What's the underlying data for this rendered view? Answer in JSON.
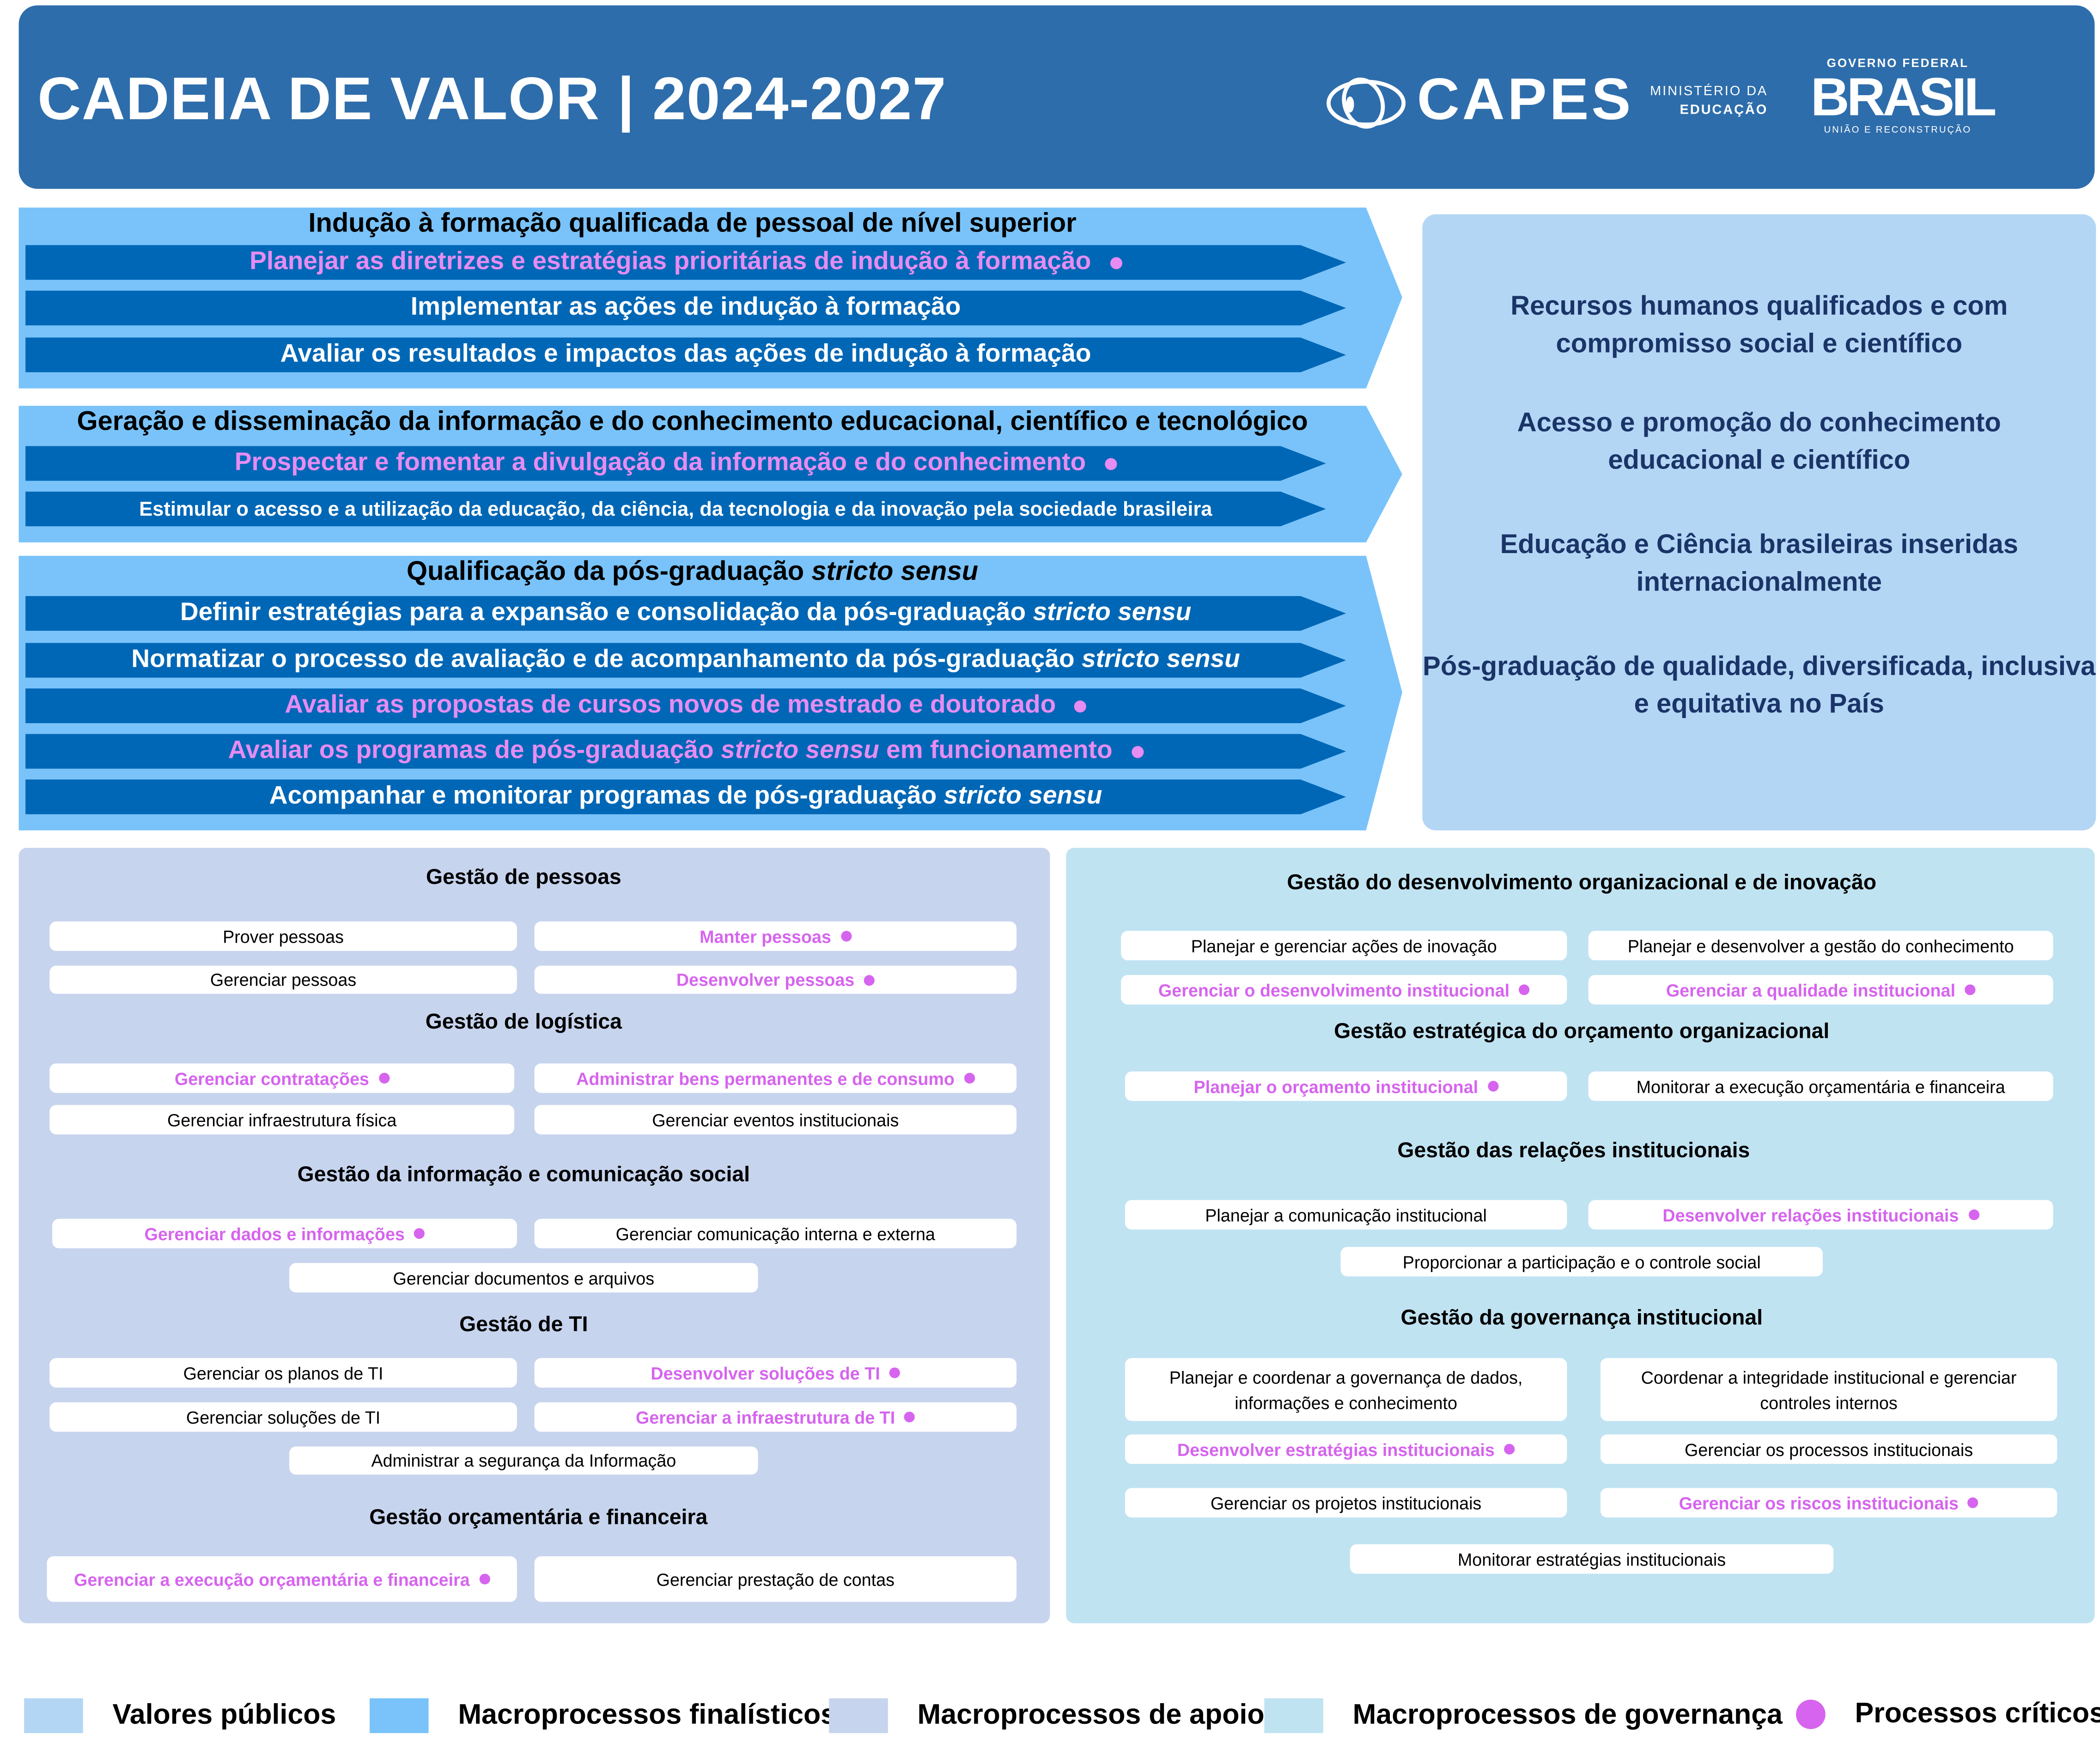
{
  "header": {
    "title": "CADEIA DE VALOR | 2024-2027",
    "logos": {
      "capes": "CAPES",
      "ministerio_line1": "MINISTÉRIO DA",
      "ministerio_line2": "EDUCAÇÃO",
      "gov_top": "GOVERNO FEDERAL",
      "gov_main": "BRASIL",
      "gov_bottom": "UNIÃO E RECONSTRUÇÃO"
    },
    "color": "#2E6DAB"
  },
  "finalisticos": [
    {
      "title": {
        "pre": "Indução à formação qualificada de pessoal de nível superior",
        "em": "",
        "post": ""
      },
      "items": [
        {
          "pre": "Planejar as diretrizes e estratégias prioritárias de indução à formação",
          "em": "",
          "post": "",
          "critical": true
        },
        {
          "pre": "Implementar as ações de indução à formação",
          "em": "",
          "post": "",
          "critical": false
        },
        {
          "pre": "Avaliar os resultados e impactos das ações de indução à formação",
          "em": "",
          "post": "",
          "critical": false
        }
      ]
    },
    {
      "title": {
        "pre": "Geração e disseminação da informação e do conhecimento educacional, científico e tecnológico",
        "em": "",
        "post": ""
      },
      "items": [
        {
          "pre": "Prospectar e fomentar a divulgação da informação e do conhecimento",
          "em": "",
          "post": "",
          "critical": true
        },
        {
          "pre": "Estimular o acesso e a utilização da educação, da ciência, da tecnologia e da inovação pela sociedade brasileira",
          "em": "",
          "post": "",
          "critical": false
        }
      ]
    },
    {
      "title": {
        "pre": "Qualificação da pós-graduação ",
        "em": "stricto sensu",
        "post": ""
      },
      "items": [
        {
          "pre": "Definir estratégias para a expansão e consolidação da pós-graduação ",
          "em": "stricto sensu",
          "post": "",
          "critical": false
        },
        {
          "pre": "Normatizar o processo de avaliação e de acompanhamento da pós-graduação ",
          "em": "stricto sensu",
          "post": "",
          "critical": false
        },
        {
          "pre": "Avaliar as propostas de cursos novos de mestrado e doutorado",
          "em": "",
          "post": "",
          "critical": true
        },
        {
          "pre": "Avaliar os programas de pós-graduação ",
          "em": "stricto sensu",
          "post": " em funcionamento",
          "critical": true
        },
        {
          "pre": "Acompanhar e monitorar programas de pós-graduação ",
          "em": "stricto sensu",
          "post": "",
          "critical": false
        }
      ]
    }
  ],
  "valores_publicos": [
    "Recursos humanos qualificados e com compromisso social e científico",
    "Acesso e promoção do conhecimento educacional e científico",
    "Educação e Ciência brasileiras inseridas internacionalmente",
    "Pós-graduação de qualidade, diversificada, inclusiva e equitativa no País"
  ],
  "apoio": [
    {
      "title": "Gestão de pessoas",
      "items": [
        {
          "label": "Prover pessoas",
          "critical": false
        },
        {
          "label": "Manter pessoas",
          "critical": true
        },
        {
          "label": "Gerenciar pessoas",
          "critical": false
        },
        {
          "label": "Desenvolver pessoas",
          "critical": true
        }
      ]
    },
    {
      "title": "Gestão de logística",
      "items": [
        {
          "label": "Gerenciar contratações",
          "critical": true
        },
        {
          "label": "Administrar bens permanentes e de consumo",
          "critical": true
        },
        {
          "label": "Gerenciar infraestrutura física",
          "critical": false
        },
        {
          "label": "Gerenciar eventos institucionais",
          "critical": false
        }
      ]
    },
    {
      "title": "Gestão da informação e comunicação social",
      "items": [
        {
          "label": "Gerenciar dados e informações",
          "critical": true
        },
        {
          "label": "Gerenciar comunicação interna e externa",
          "critical": false
        },
        {
          "label": "Gerenciar documentos e arquivos",
          "critical": false
        }
      ]
    },
    {
      "title": "Gestão de TI",
      "items": [
        {
          "label": "Gerenciar os planos de TI",
          "critical": false
        },
        {
          "label": "Desenvolver soluções de TI",
          "critical": true
        },
        {
          "label": "Gerenciar soluções de TI",
          "critical": false
        },
        {
          "label": "Gerenciar a infraestrutura de TI",
          "critical": true
        },
        {
          "label": "Administrar a segurança da Informação",
          "critical": false
        }
      ]
    },
    {
      "title": "Gestão orçamentária e financeira",
      "items": [
        {
          "label": "Gerenciar a execução orçamentária e financeira",
          "critical": true
        },
        {
          "label": "Gerenciar prestação de contas",
          "critical": false
        }
      ]
    }
  ],
  "governanca": [
    {
      "title": "Gestão do desenvolvimento organizacional e de inovação",
      "items": [
        {
          "label": "Planejar e gerenciar ações de inovação",
          "critical": false
        },
        {
          "label": "Planejar e desenvolver a gestão do conhecimento",
          "critical": false
        },
        {
          "label": "Gerenciar o desenvolvimento institucional",
          "critical": true
        },
        {
          "label": "Gerenciar a qualidade institucional",
          "critical": true
        }
      ]
    },
    {
      "title": "Gestão estratégica do orçamento organizacional",
      "items": [
        {
          "label": "Planejar o orçamento institucional",
          "critical": true
        },
        {
          "label": "Monitorar a execução orçamentária e financeira",
          "critical": false
        }
      ]
    },
    {
      "title": "Gestão das relações institucionais",
      "items": [
        {
          "label": "Planejar a comunicação institucional",
          "critical": false
        },
        {
          "label": "Desenvolver relações institucionais",
          "critical": true
        },
        {
          "label": "Proporcionar a participação e o controle social",
          "critical": false
        }
      ]
    },
    {
      "title": "Gestão da governança institucional",
      "items": [
        {
          "label": "Planejar e coordenar a governança de dados, informações e conhecimento",
          "critical": false
        },
        {
          "label": "Coordenar a integridade institucional e gerenciar controles internos",
          "critical": false
        },
        {
          "label": "Desenvolver estratégias institucionais",
          "critical": true
        },
        {
          "label": "Gerenciar os processos institucionais",
          "critical": false
        },
        {
          "label": "Gerenciar os projetos institucionais",
          "critical": false
        },
        {
          "label": "Gerenciar os riscos institucionais",
          "critical": true
        },
        {
          "label": "Monitorar estratégias institucionais",
          "critical": false
        }
      ]
    }
  ],
  "legend": [
    {
      "label": "Valores públicos",
      "color": "#B3D6F5"
    },
    {
      "label": "Macroprocessos finalísticos",
      "color": "#79C3FA"
    },
    {
      "label": "Macroprocessos de apoio",
      "color": "#C7D4EE"
    },
    {
      "label": "Macroprocessos de governança",
      "color": "#C0E3F2"
    },
    {
      "label": "Processos críticos",
      "color": "#D664EE"
    }
  ]
}
